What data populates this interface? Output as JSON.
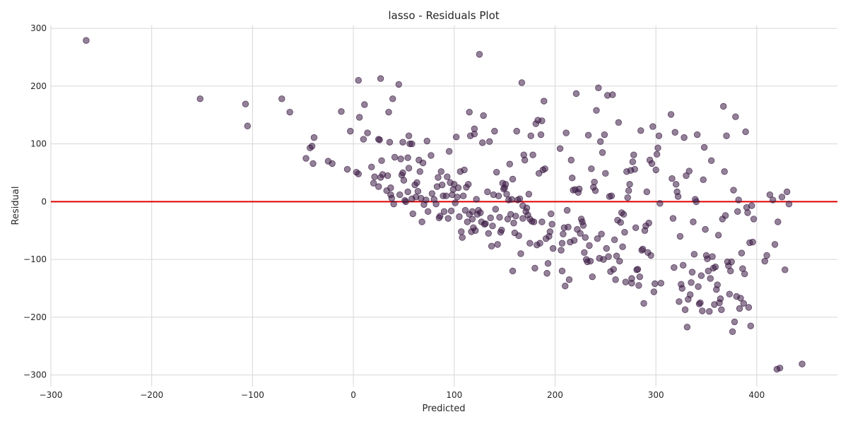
{
  "chart_data": {
    "type": "scatter",
    "title": "lasso - Residuals Plot",
    "xlabel": "Predicted",
    "ylabel": "Residual",
    "xlim": [
      -300,
      480
    ],
    "ylim": [
      -320,
      305
    ],
    "xticks": [
      -300,
      -200,
      -100,
      0,
      100,
      200,
      300,
      400
    ],
    "yticks": [
      -300,
      -200,
      -100,
      0,
      100,
      200,
      300
    ],
    "xtick_labels": [
      "−300",
      "−200",
      "−100",
      "0",
      "100",
      "200",
      "300",
      "400"
    ],
    "ytick_labels": [
      "−300",
      "−200",
      "−100",
      "0",
      "100",
      "200",
      "300"
    ],
    "grid": true,
    "reference_line": {
      "y": 0,
      "color": "#e00000"
    },
    "marker_color": "#3b1a44",
    "points": [
      [
        -265,
        279
      ],
      [
        -152,
        178
      ],
      [
        -107,
        169
      ],
      [
        -105,
        131
      ],
      [
        -71,
        178
      ],
      [
        -63,
        155
      ],
      [
        -47,
        75
      ],
      [
        -43,
        93
      ],
      [
        -41,
        96
      ],
      [
        -40,
        66
      ],
      [
        -39,
        111
      ],
      [
        -25,
        70
      ],
      [
        -21,
        66
      ],
      [
        -12,
        156
      ],
      [
        -6,
        56
      ],
      [
        -3,
        122
      ],
      [
        3,
        51
      ],
      [
        5,
        48
      ],
      [
        5,
        210
      ],
      [
        6,
        146
      ],
      [
        10,
        108
      ],
      [
        11,
        168
      ],
      [
        14,
        119
      ],
      [
        18,
        60
      ],
      [
        20,
        32
      ],
      [
        21,
        43
      ],
      [
        25,
        26
      ],
      [
        25,
        108
      ],
      [
        26,
        107
      ],
      [
        27,
        42
      ],
      [
        27,
        213
      ],
      [
        28,
        71
      ],
      [
        29,
        47
      ],
      [
        33,
        19
      ],
      [
        34,
        45
      ],
      [
        35,
        155
      ],
      [
        36,
        103
      ],
      [
        37,
        24
      ],
      [
        37,
        12
      ],
      [
        38,
        6
      ],
      [
        39,
        178
      ],
      [
        40,
        -4
      ],
      [
        41,
        77
      ],
      [
        45,
        203
      ],
      [
        46,
        12
      ],
      [
        47,
        74
      ],
      [
        48,
        46
      ],
      [
        49,
        50
      ],
      [
        49,
        103
      ],
      [
        50,
        37
      ],
      [
        51,
        2
      ],
      [
        52,
        0
      ],
      [
        54,
        76
      ],
      [
        54,
        17
      ],
      [
        55,
        58
      ],
      [
        55,
        114
      ],
      [
        56,
        100
      ],
      [
        58,
        100
      ],
      [
        58,
        5
      ],
      [
        59,
        -21
      ],
      [
        61,
        29
      ],
      [
        62,
        8
      ],
      [
        63,
        33
      ],
      [
        64,
        18
      ],
      [
        65,
        72
      ],
      [
        66,
        52
      ],
      [
        67,
        6
      ],
      [
        68,
        -35
      ],
      [
        69,
        67
      ],
      [
        70,
        -5
      ],
      [
        72,
        3
      ],
      [
        73,
        105
      ],
      [
        74,
        -17
      ],
      [
        77,
        80
      ],
      [
        78,
        14
      ],
      [
        80,
        4
      ],
      [
        82,
        -4
      ],
      [
        83,
        26
      ],
      [
        84,
        42
      ],
      [
        85,
        -28
      ],
      [
        86,
        -25
      ],
      [
        87,
        52
      ],
      [
        88,
        29
      ],
      [
        89,
        10
      ],
      [
        90,
        -17
      ],
      [
        92,
        10
      ],
      [
        93,
        43
      ],
      [
        94,
        -29
      ],
      [
        95,
        87
      ],
      [
        96,
        33
      ],
      [
        97,
        -16
      ],
      [
        98,
        12
      ],
      [
        99,
        21
      ],
      [
        100,
        30
      ],
      [
        101,
        -2
      ],
      [
        102,
        112
      ],
      [
        103,
        8
      ],
      [
        104,
        24
      ],
      [
        105,
        -26
      ],
      [
        106,
        52
      ],
      [
        107,
        -52
      ],
      [
        108,
        -62
      ],
      [
        109,
        10
      ],
      [
        110,
        55
      ],
      [
        111,
        -15
      ],
      [
        112,
        25
      ],
      [
        113,
        -35
      ],
      [
        114,
        30
      ],
      [
        115,
        155
      ],
      [
        115,
        -22
      ],
      [
        116,
        114
      ],
      [
        117,
        -52
      ],
      [
        118,
        -30
      ],
      [
        118,
        -17
      ],
      [
        119,
        -45
      ],
      [
        120,
        126
      ],
      [
        120,
        117
      ],
      [
        121,
        -50
      ],
      [
        122,
        4
      ],
      [
        123,
        -22
      ],
      [
        124,
        -15
      ],
      [
        125,
        255
      ],
      [
        126,
        -19
      ],
      [
        127,
        -35
      ],
      [
        128,
        102
      ],
      [
        129,
        149
      ],
      [
        130,
        -39
      ],
      [
        131,
        -38
      ],
      [
        133,
        17
      ],
      [
        134,
        -55
      ],
      [
        135,
        104
      ],
      [
        136,
        -28
      ],
      [
        137,
        -77
      ],
      [
        138,
        -42
      ],
      [
        139,
        12
      ],
      [
        140,
        122
      ],
      [
        141,
        -13
      ],
      [
        142,
        51
      ],
      [
        143,
        -74
      ],
      [
        144,
        10
      ],
      [
        145,
        -27
      ],
      [
        146,
        -53
      ],
      [
        147,
        -49
      ],
      [
        148,
        32
      ],
      [
        149,
        22
      ],
      [
        150,
        24
      ],
      [
        151,
        30
      ],
      [
        152,
        13
      ],
      [
        153,
        -30
      ],
      [
        154,
        3
      ],
      [
        155,
        65
      ],
      [
        156,
        -22
      ],
      [
        157,
        4
      ],
      [
        158,
        39
      ],
      [
        158,
        -120
      ],
      [
        159,
        -37
      ],
      [
        160,
        -54
      ],
      [
        161,
        -25
      ],
      [
        162,
        122
      ],
      [
        163,
        3
      ],
      [
        164,
        -59
      ],
      [
        165,
        5
      ],
      [
        166,
        -90
      ],
      [
        167,
        206
      ],
      [
        168,
        -7
      ],
      [
        168,
        -29
      ],
      [
        169,
        81
      ],
      [
        170,
        72
      ],
      [
        171,
        -17
      ],
      [
        172,
        -11
      ],
      [
        173,
        -23
      ],
      [
        174,
        13
      ],
      [
        175,
        -30
      ],
      [
        175,
        -72
      ],
      [
        176,
        114
      ],
      [
        177,
        -34
      ],
      [
        178,
        81
      ],
      [
        179,
        -35
      ],
      [
        180,
        -115
      ],
      [
        181,
        135
      ],
      [
        182,
        -75
      ],
      [
        183,
        141
      ],
      [
        184,
        49
      ],
      [
        185,
        -72
      ],
      [
        186,
        116
      ],
      [
        187,
        140
      ],
      [
        187,
        -35
      ],
      [
        188,
        55
      ],
      [
        189,
        174
      ],
      [
        190,
        57
      ],
      [
        191,
        -64
      ],
      [
        192,
        -124
      ],
      [
        193,
        -107
      ],
      [
        194,
        -60
      ],
      [
        195,
        -52
      ],
      [
        196,
        -21
      ],
      [
        197,
        -39
      ],
      [
        198,
        -81
      ],
      [
        205,
        92
      ],
      [
        206,
        -84
      ],
      [
        207,
        -120
      ],
      [
        207,
        -72
      ],
      [
        208,
        -56
      ],
      [
        209,
        -45
      ],
      [
        210,
        -146
      ],
      [
        211,
        119
      ],
      [
        212,
        -15
      ],
      [
        213,
        -44
      ],
      [
        214,
        -135
      ],
      [
        215,
        -70
      ],
      [
        216,
        72
      ],
      [
        217,
        41
      ],
      [
        218,
        20
      ],
      [
        219,
        -67
      ],
      [
        220,
        21
      ],
      [
        221,
        187
      ],
      [
        222,
        -48
      ],
      [
        223,
        16
      ],
      [
        224,
        22
      ],
      [
        225,
        -55
      ],
      [
        226,
        -30
      ],
      [
        227,
        -35
      ],
      [
        228,
        -41
      ],
      [
        229,
        -88
      ],
      [
        230,
        -62
      ],
      [
        231,
        -100
      ],
      [
        232,
        -104
      ],
      [
        233,
        115
      ],
      [
        234,
        -76
      ],
      [
        235,
        -103
      ],
      [
        236,
        57
      ],
      [
        237,
        -130
      ],
      [
        238,
        25
      ],
      [
        239,
        34
      ],
      [
        240,
        19
      ],
      [
        241,
        158
      ],
      [
        242,
        -64
      ],
      [
        243,
        197
      ],
      [
        244,
        -98
      ],
      [
        245,
        104
      ],
      [
        246,
        -56
      ],
      [
        247,
        85
      ],
      [
        248,
        -100
      ],
      [
        249,
        116
      ],
      [
        250,
        49
      ],
      [
        251,
        -81
      ],
      [
        252,
        184
      ],
      [
        253,
        -95
      ],
      [
        254,
        9
      ],
      [
        255,
        -121
      ],
      [
        256,
        10
      ],
      [
        257,
        185
      ],
      [
        258,
        -117
      ],
      [
        259,
        -66
      ],
      [
        260,
        -135
      ],
      [
        261,
        -94
      ],
      [
        262,
        -32
      ],
      [
        263,
        137
      ],
      [
        264,
        -103
      ],
      [
        265,
        -36
      ],
      [
        266,
        -19
      ],
      [
        267,
        -78
      ],
      [
        268,
        -22
      ],
      [
        269,
        -53
      ],
      [
        270,
        -139
      ],
      [
        271,
        52
      ],
      [
        272,
        7
      ],
      [
        273,
        19
      ],
      [
        274,
        30
      ],
      [
        275,
        54
      ],
      [
        276,
        -133
      ],
      [
        276,
        -141
      ],
      [
        277,
        69
      ],
      [
        278,
        81
      ],
      [
        279,
        56
      ],
      [
        280,
        -45
      ],
      [
        281,
        -118
      ],
      [
        282,
        -117
      ],
      [
        283,
        -145
      ],
      [
        284,
        -130
      ],
      [
        285,
        123
      ],
      [
        286,
        -84
      ],
      [
        287,
        -82
      ],
      [
        288,
        -176
      ],
      [
        289,
        -50
      ],
      [
        290,
        -42
      ],
      [
        291,
        17
      ],
      [
        292,
        -88
      ],
      [
        293,
        -37
      ],
      [
        294,
        72
      ],
      [
        295,
        -93
      ],
      [
        296,
        66
      ],
      [
        297,
        130
      ],
      [
        298,
        -156
      ],
      [
        299,
        -142
      ],
      [
        300,
        55
      ],
      [
        301,
        82
      ],
      [
        302,
        93
      ],
      [
        303,
        114
      ],
      [
        304,
        -3
      ],
      [
        305,
        -141
      ],
      [
        315,
        151
      ],
      [
        316,
        40
      ],
      [
        317,
        -29
      ],
      [
        318,
        -114
      ],
      [
        319,
        120
      ],
      [
        320,
        30
      ],
      [
        321,
        17
      ],
      [
        322,
        9
      ],
      [
        323,
        -173
      ],
      [
        324,
        -60
      ],
      [
        325,
        -143
      ],
      [
        326,
        -150
      ],
      [
        327,
        -110
      ],
      [
        328,
        111
      ],
      [
        329,
        -187
      ],
      [
        330,
        45
      ],
      [
        331,
        -217
      ],
      [
        332,
        -169
      ],
      [
        333,
        53
      ],
      [
        334,
        -161
      ],
      [
        335,
        -140
      ],
      [
        336,
        -122
      ],
      [
        337,
        -35
      ],
      [
        338,
        -91
      ],
      [
        339,
        4
      ],
      [
        340,
        0
      ],
      [
        341,
        116
      ],
      [
        342,
        -147
      ],
      [
        343,
        -177
      ],
      [
        344,
        -175
      ],
      [
        345,
        -128
      ],
      [
        346,
        -189
      ],
      [
        347,
        38
      ],
      [
        348,
        94
      ],
      [
        349,
        -48
      ],
      [
        350,
        -93
      ],
      [
        351,
        -99
      ],
      [
        352,
        -120
      ],
      [
        353,
        -190
      ],
      [
        354,
        -133
      ],
      [
        355,
        71
      ],
      [
        356,
        -95
      ],
      [
        357,
        -115
      ],
      [
        358,
        -178
      ],
      [
        359,
        -113
      ],
      [
        360,
        -152
      ],
      [
        361,
        -144
      ],
      [
        362,
        -58
      ],
      [
        363,
        -175
      ],
      [
        364,
        -168
      ],
      [
        365,
        -187
      ],
      [
        366,
        -30
      ],
      [
        367,
        165
      ],
      [
        368,
        52
      ],
      [
        369,
        -24
      ],
      [
        370,
        114
      ],
      [
        371,
        -104
      ],
      [
        372,
        -111
      ],
      [
        373,
        -160
      ],
      [
        374,
        -120
      ],
      [
        375,
        -104
      ],
      [
        376,
        -225
      ],
      [
        377,
        20
      ],
      [
        378,
        -208
      ],
      [
        379,
        147
      ],
      [
        380,
        -164
      ],
      [
        381,
        -17
      ],
      [
        382,
        3
      ],
      [
        383,
        -185
      ],
      [
        384,
        -167
      ],
      [
        385,
        -89
      ],
      [
        386,
        -116
      ],
      [
        387,
        -176
      ],
      [
        388,
        -125
      ],
      [
        389,
        121
      ],
      [
        390,
        -10
      ],
      [
        391,
        -19
      ],
      [
        392,
        -183
      ],
      [
        393,
        -71
      ],
      [
        394,
        -215
      ],
      [
        395,
        -7
      ],
      [
        396,
        -70
      ],
      [
        397,
        -30
      ],
      [
        408,
        -103
      ],
      [
        410,
        -93
      ],
      [
        413,
        12
      ],
      [
        416,
        3
      ],
      [
        418,
        -74
      ],
      [
        420,
        -290
      ],
      [
        421,
        -35
      ],
      [
        423,
        -288
      ],
      [
        425,
        8
      ],
      [
        428,
        -118
      ],
      [
        430,
        17
      ],
      [
        432,
        -4
      ],
      [
        445,
        -281
      ]
    ]
  }
}
